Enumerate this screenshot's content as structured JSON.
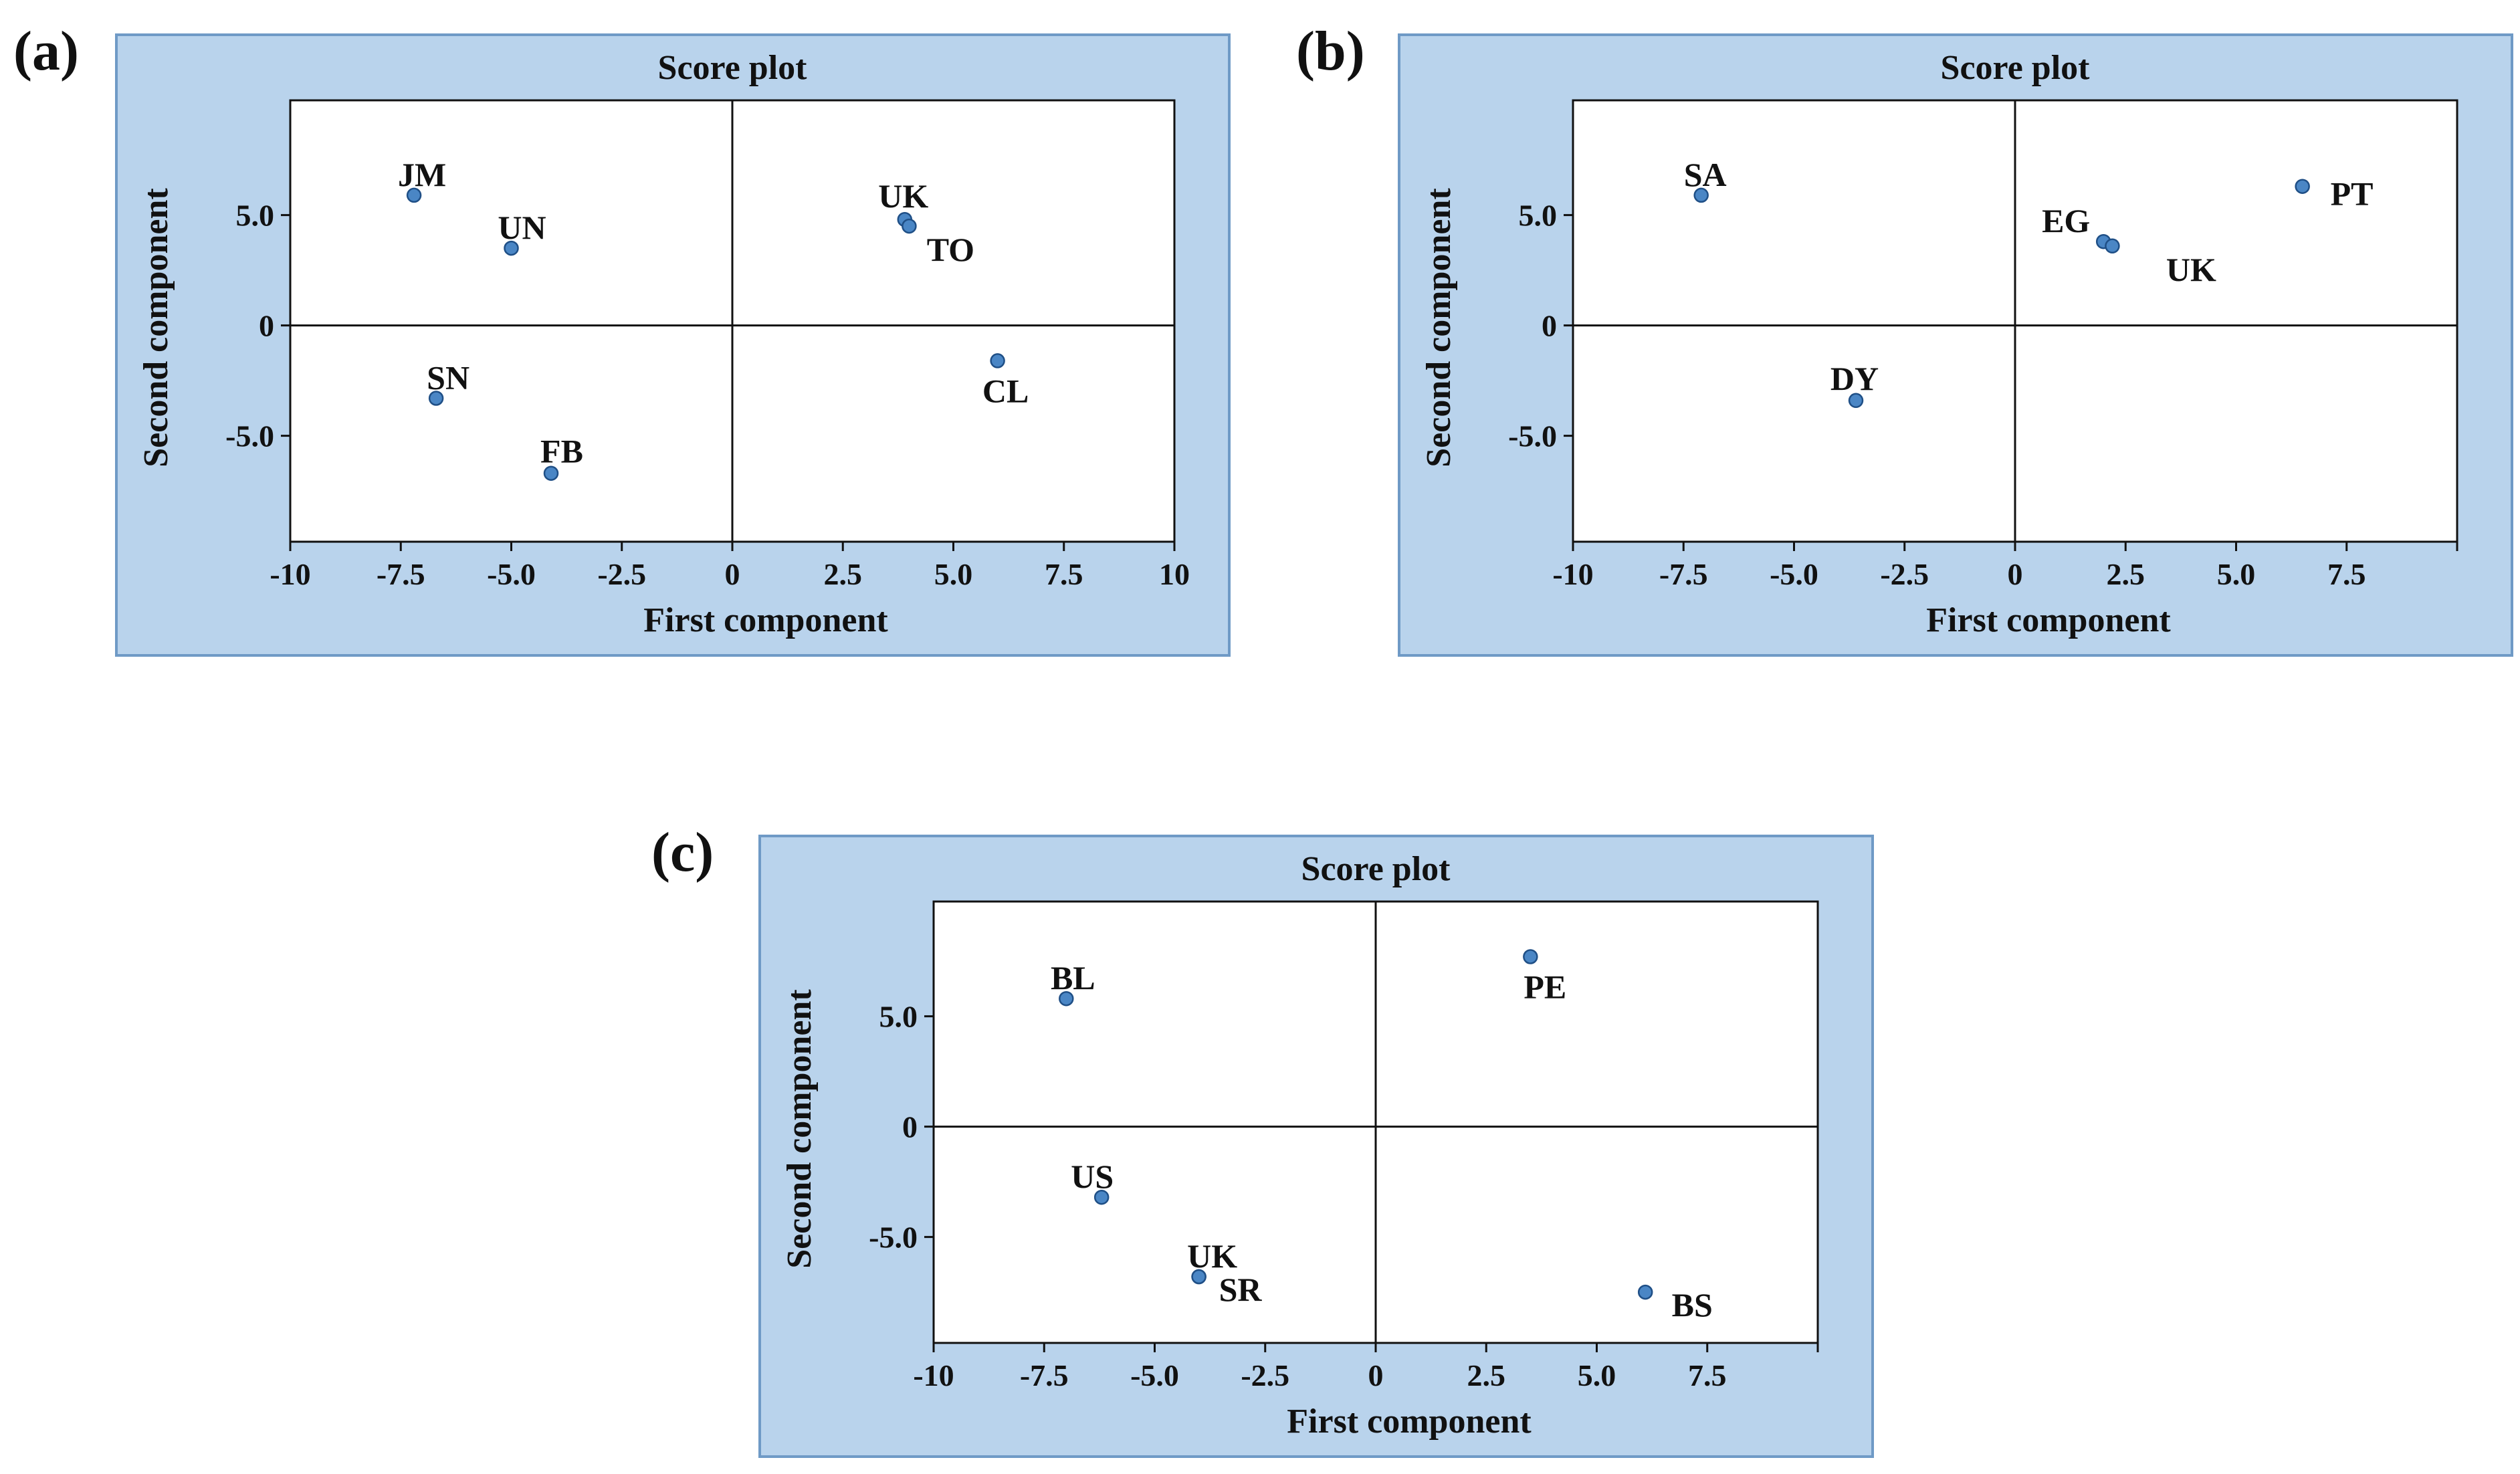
{
  "panels": [
    {
      "label": "(a)",
      "chart_data": {
        "type": "scatter",
        "title": "Score plot",
        "xlabel": "First component",
        "ylabel": "Second component",
        "xlim": [
          -10,
          10
        ],
        "ylim": [
          -9.8,
          10.2
        ],
        "xticks": [
          "-10",
          "-7.5",
          "-5.0",
          "-2.5",
          "0",
          "2.5",
          "5.0",
          "7.5",
          "10"
        ],
        "yticks": [
          "5.0",
          "0",
          "-5.0"
        ],
        "points": [
          {
            "label": "JM",
            "x": -7.2,
            "y": 5.9
          },
          {
            "label": "UN",
            "x": -5.0,
            "y": 3.5
          },
          {
            "label": "SN",
            "x": -6.7,
            "y": -3.3
          },
          {
            "label": "FB",
            "x": -4.1,
            "y": -6.7
          },
          {
            "label": "UK",
            "x": 3.9,
            "y": 4.8
          },
          {
            "label": "TO",
            "x": 4.0,
            "y": 4.5
          },
          {
            "label": "CL",
            "x": 6.0,
            "y": -1.6
          }
        ],
        "marker_color": "#4a86c5",
        "background_color": "#b9d3ec"
      }
    },
    {
      "label": "(b)",
      "chart_data": {
        "type": "scatter",
        "title": "Score plot",
        "xlabel": "First component",
        "ylabel": "Second component",
        "xlim": [
          -10,
          10
        ],
        "ylim": [
          -9.8,
          10.2
        ],
        "xticks": [
          "-10",
          "-7.5",
          "-5.0",
          "-2.5",
          "0",
          "2.5",
          "5.0",
          "7.5"
        ],
        "yticks": [
          "5.0",
          "0",
          "-5.0"
        ],
        "points": [
          {
            "label": "SA",
            "x": -7.1,
            "y": 5.9
          },
          {
            "label": "DY",
            "x": -3.6,
            "y": -3.4
          },
          {
            "label": "EG",
            "x": 2.0,
            "y": 3.8
          },
          {
            "label": "UK",
            "x": 2.2,
            "y": 3.6
          },
          {
            "label": "PT",
            "x": 6.5,
            "y": 6.3
          }
        ],
        "marker_color": "#4a86c5",
        "background_color": "#b9d3ec"
      }
    },
    {
      "label": "(c)",
      "chart_data": {
        "type": "scatter",
        "title": "Score plot",
        "xlabel": "First component",
        "ylabel": "Second component",
        "xlim": [
          -10,
          10
        ],
        "ylim": [
          -9.8,
          10.2
        ],
        "xticks": [
          "-10",
          "-7.5",
          "-5.0",
          "-2.5",
          "0",
          "2.5",
          "5.0",
          "7.5"
        ],
        "yticks": [
          "5.0",
          "0",
          "-5.0"
        ],
        "points": [
          {
            "label": "BL",
            "x": -7.0,
            "y": 5.8
          },
          {
            "label": "PE",
            "x": 3.5,
            "y": 7.7
          },
          {
            "label": "US",
            "x": -6.2,
            "y": -3.2
          },
          {
            "label": "UK",
            "x": -4.0,
            "y": -6.8
          },
          {
            "label": "SR",
            "x": -4.0,
            "y": -6.8
          },
          {
            "label": "BS",
            "x": 6.1,
            "y": -7.5
          }
        ],
        "marker_color": "#4a86c5",
        "background_color": "#b9d3ec"
      }
    }
  ]
}
